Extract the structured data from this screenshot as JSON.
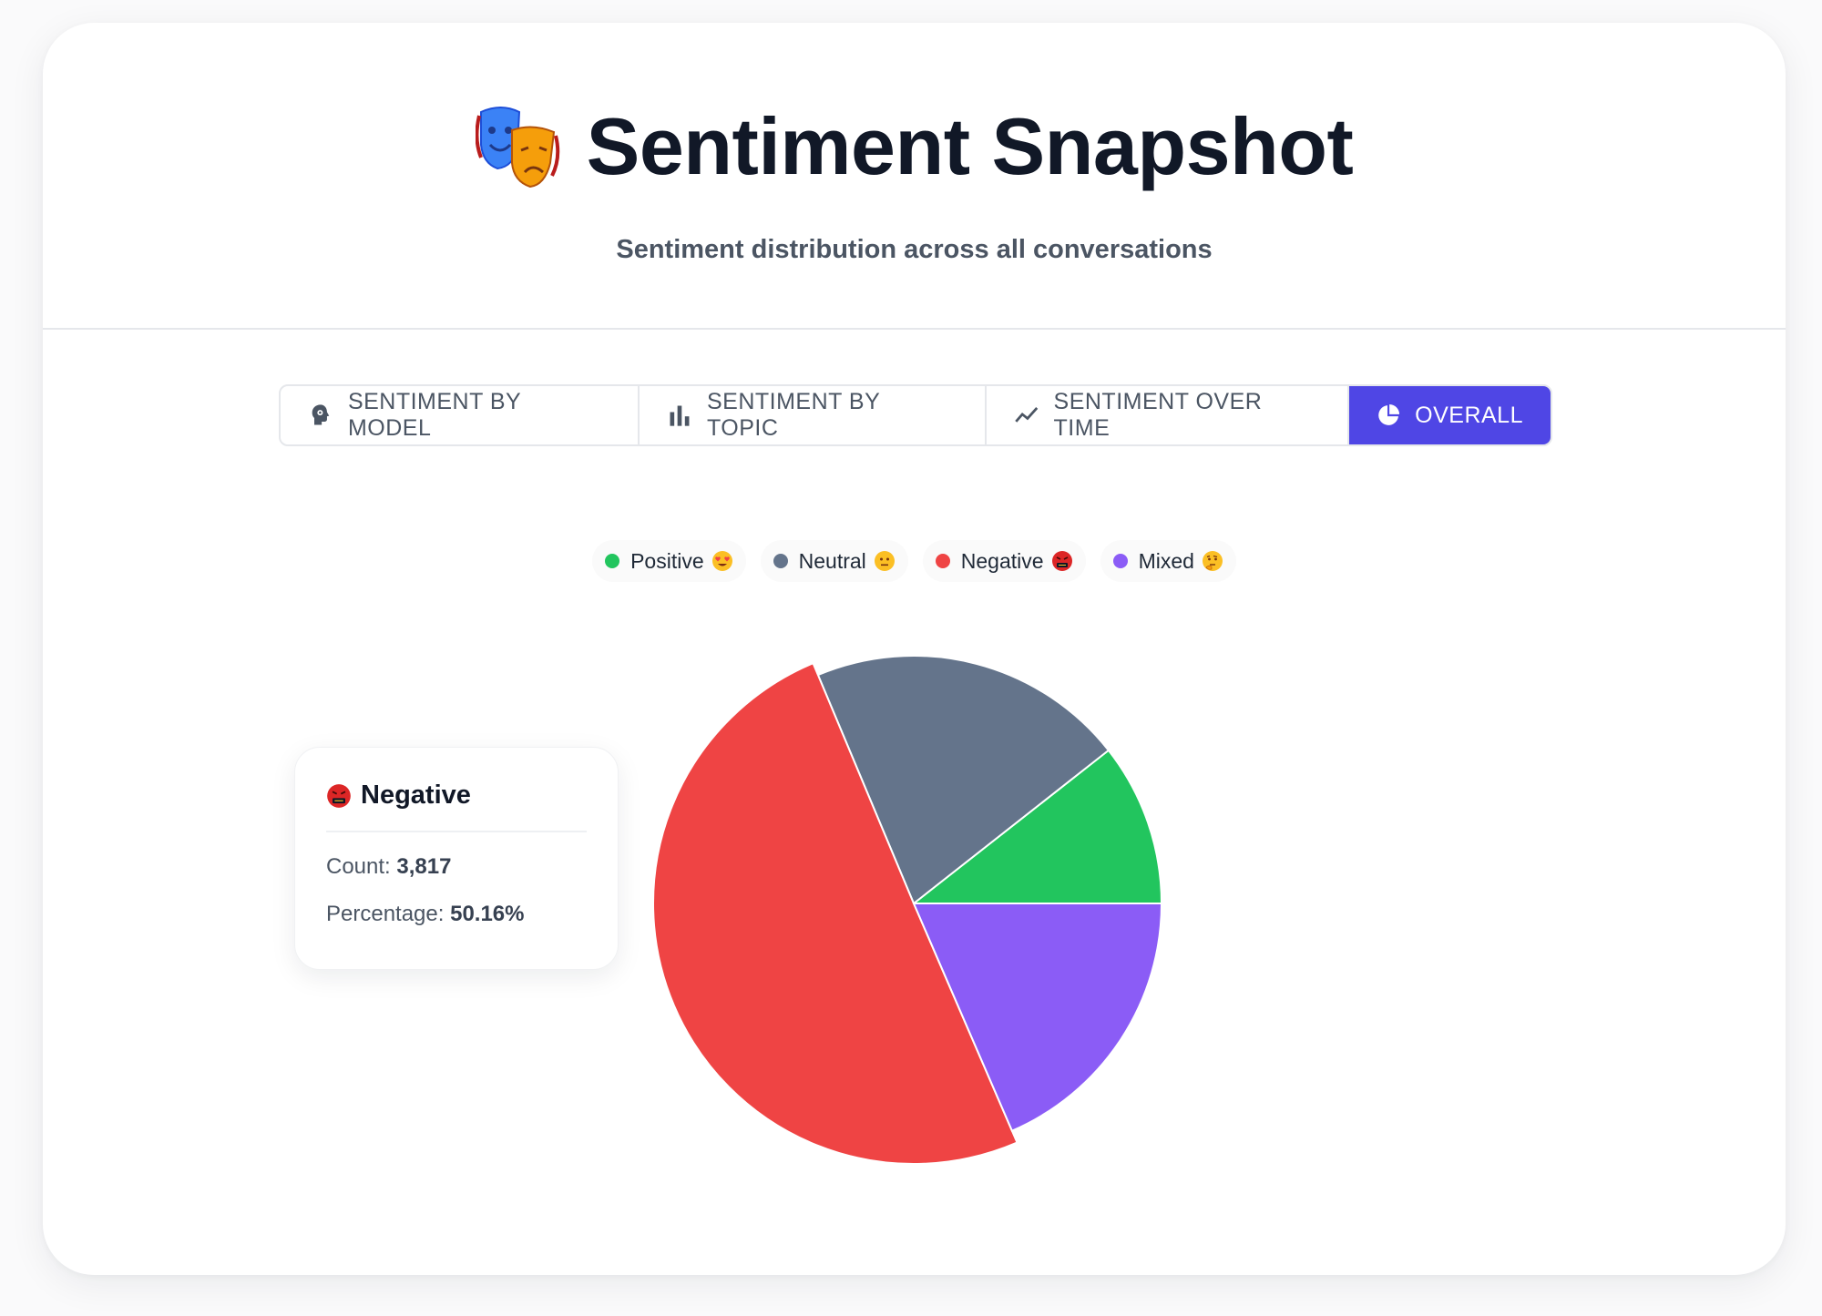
{
  "header": {
    "title": "Sentiment Snapshot",
    "title_icon": "theater-masks-icon",
    "subtitle": "Sentiment distribution across all conversations"
  },
  "tabs": [
    {
      "label": "SENTIMENT BY MODEL",
      "icon": "brain-head-icon",
      "active": false
    },
    {
      "label": "SENTIMENT BY TOPIC",
      "icon": "bar-chart-icon",
      "active": false
    },
    {
      "label": "SENTIMENT OVER TIME",
      "icon": "trend-line-icon",
      "active": false
    },
    {
      "label": "OVERALL",
      "icon": "pie-chart-icon",
      "active": true
    }
  ],
  "legend": [
    {
      "label": "Positive",
      "color": "#22c55e",
      "emoji": "heart-eyes-emoji"
    },
    {
      "label": "Neutral",
      "color": "#64748b",
      "emoji": "neutral-face-emoji"
    },
    {
      "label": "Negative",
      "color": "#ef4444",
      "emoji": "cursing-face-emoji"
    },
    {
      "label": "Mixed",
      "color": "#8b5cf6",
      "emoji": "thinking-face-emoji"
    }
  ],
  "tooltip": {
    "title": "Negative",
    "count_label": "Count: ",
    "count_value": "3,817",
    "pct_label": "Percentage: ",
    "pct_value": "50.16%"
  },
  "chart_data": {
    "type": "pie",
    "categories": [
      "Positive",
      "Neutral",
      "Negative",
      "Mixed"
    ],
    "values": [
      10.6,
      20.7,
      50.16,
      18.5
    ],
    "colors": [
      "#22c55e",
      "#64748b",
      "#ef4444",
      "#8b5cf6"
    ],
    "highlighted": "Negative",
    "legend_position": "top"
  }
}
